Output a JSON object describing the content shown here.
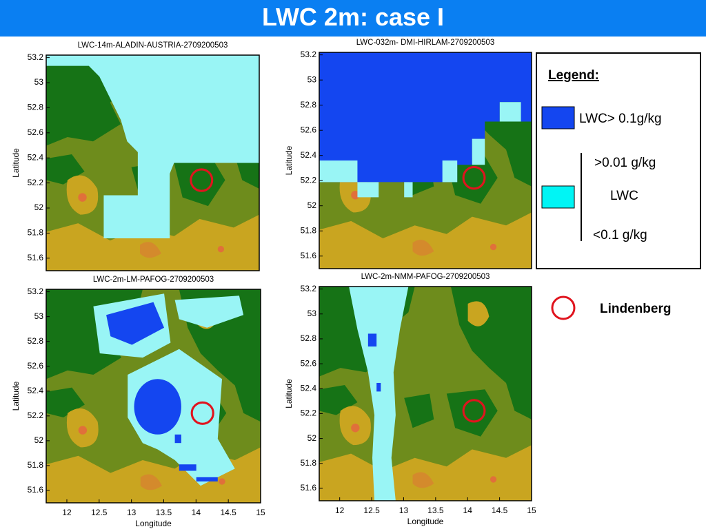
{
  "header": {
    "title": "LWC 2m: case I"
  },
  "axes": {
    "xlim": [
      11.68,
      15
    ],
    "ylim": [
      51.5,
      53.22
    ]
  },
  "panels": [
    {
      "title": "LWC-14m-ALADIN-AUSTRIA-2709200503",
      "ylabel": "Latitude",
      "yticks": [
        53.2,
        53,
        52.8,
        52.6,
        52.4,
        52.2,
        52,
        51.8,
        51.6
      ]
    },
    {
      "title": "LWC-032m- DMI-HIRLAM-2709200503",
      "ylabel": "Latitude",
      "yticks": [
        53.2,
        53,
        52.8,
        52.6,
        52.4,
        52.2,
        52,
        51.8,
        51.6
      ]
    },
    {
      "title": "LWC-2m-LM-PAFOG-2709200503",
      "ylabel": "Latitude",
      "yticks": [
        53.2,
        53,
        52.8,
        52.6,
        52.4,
        52.2,
        52,
        51.8,
        51.6
      ],
      "xlabel": "Longitude",
      "xticks": [
        12,
        12.5,
        13,
        13.5,
        14,
        14.5,
        15
      ]
    },
    {
      "title": "LWC-2m-NMM-PAFOG-2709200503",
      "ylabel": "Latitude",
      "yticks": [
        53.2,
        53,
        52.8,
        52.6,
        52.4,
        52.2,
        52,
        51.8,
        51.6
      ],
      "xlabel": "Longitude",
      "xticks": [
        12,
        12.5,
        13,
        13.5,
        14,
        14.5,
        15
      ]
    }
  ],
  "legend": {
    "title": "Legend:",
    "high": "LWC> 0.1g/kg",
    "mid_upper": ">0.01 g/kg",
    "mid": "LWC",
    "mid_lower": "<0.1 g/kg",
    "site": "Lindenberg"
  }
}
